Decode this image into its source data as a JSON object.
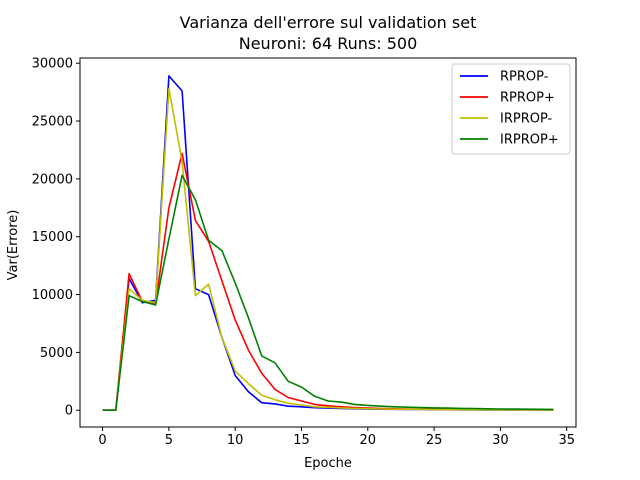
{
  "chart_data": {
    "type": "line",
    "title": "Varianza dell'errore sul validation set",
    "subtitle": "Neuroni: 64 Runs: 500",
    "xlabel": "Epoche",
    "ylabel": "Var(Errore)",
    "xlim": [
      -1.7,
      35.7
    ],
    "ylim": [
      -1450,
      30450
    ],
    "xticks": [
      0,
      5,
      10,
      15,
      20,
      25,
      30,
      35
    ],
    "yticks": [
      0,
      5000,
      10000,
      15000,
      20000,
      25000,
      30000
    ],
    "grid": false,
    "legend_position": "top-right",
    "x": [
      0,
      1,
      2,
      3,
      4,
      5,
      6,
      7,
      8,
      9,
      10,
      11,
      12,
      13,
      14,
      15,
      16,
      17,
      18,
      19,
      20,
      21,
      22,
      23,
      24,
      25,
      26,
      27,
      28,
      29,
      30,
      31,
      32,
      33,
      34
    ],
    "series": [
      {
        "name": "RPROP-",
        "color": "#0000ff",
        "values": [
          0,
          0,
          11400,
          9300,
          9500,
          28900,
          27600,
          10500,
          10000,
          6300,
          3000,
          1600,
          650,
          550,
          350,
          300,
          220,
          180,
          150,
          120,
          100,
          90,
          80,
          70,
          60,
          50,
          45,
          40,
          35,
          30,
          28,
          25,
          22,
          20,
          20
        ]
      },
      {
        "name": "RPROP+",
        "color": "#ff0000",
        "values": [
          0,
          0,
          11800,
          9400,
          9200,
          17500,
          22200,
          16400,
          14600,
          11200,
          7800,
          5200,
          3200,
          1800,
          1100,
          800,
          500,
          380,
          300,
          230,
          180,
          150,
          120,
          100,
          90,
          80,
          70,
          60,
          55,
          50,
          45,
          40,
          38,
          35,
          30
        ]
      },
      {
        "name": "IRPROP-",
        "color": "#bfbf00",
        "values": [
          0,
          0,
          10500,
          9500,
          9300,
          27800,
          21500,
          9900,
          10900,
          6300,
          3400,
          2300,
          1300,
          900,
          600,
          450,
          300,
          250,
          200,
          160,
          130,
          110,
          90,
          80,
          70,
          60,
          55,
          50,
          45,
          40,
          38,
          35,
          32,
          30,
          30
        ]
      },
      {
        "name": "IRPROP+",
        "color": "#008000",
        "values": [
          0,
          0,
          9900,
          9400,
          9100,
          14800,
          20300,
          18200,
          14700,
          13800,
          11000,
          8000,
          4700,
          4100,
          2500,
          2000,
          1200,
          800,
          700,
          500,
          420,
          350,
          300,
          260,
          230,
          200,
          180,
          160,
          140,
          120,
          110,
          100,
          90,
          80,
          70
        ]
      }
    ]
  }
}
